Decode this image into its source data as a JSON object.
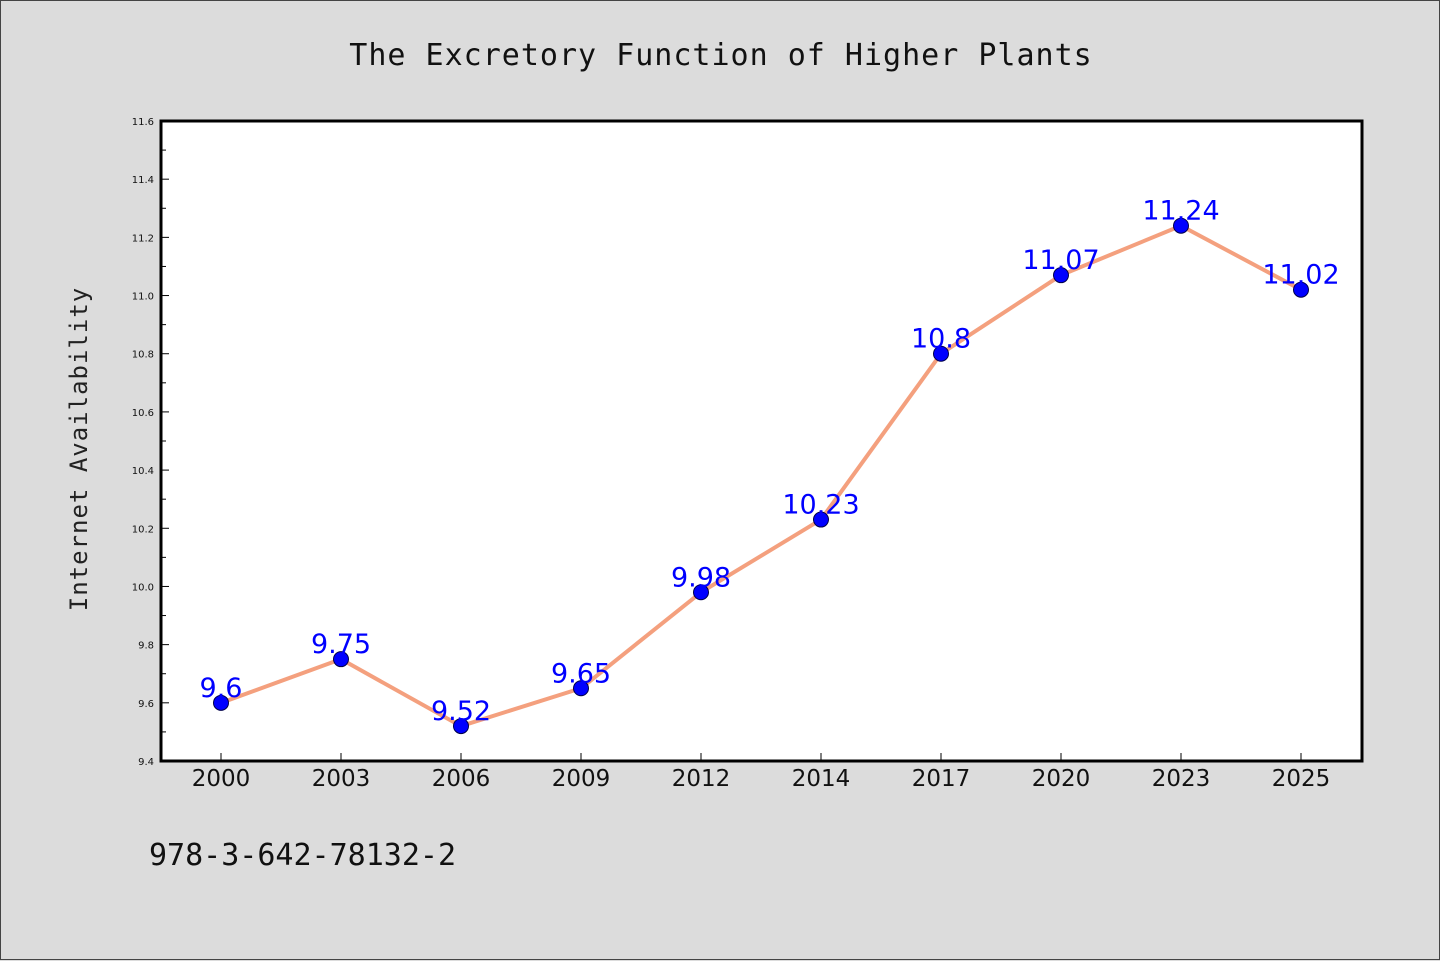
{
  "chart_data": {
    "type": "line",
    "title": "The Excretory Function of Higher Plants",
    "xlabel": "",
    "ylabel": "Internet Availability",
    "categories": [
      "2000",
      "2003",
      "2006",
      "2009",
      "2012",
      "2014",
      "2017",
      "2020",
      "2023",
      "2025"
    ],
    "values": [
      9.6,
      9.75,
      9.52,
      9.65,
      9.98,
      10.23,
      10.8,
      11.07,
      11.24,
      11.02
    ],
    "data_labels": [
      "9.6",
      "9.75",
      "9.52",
      "9.65",
      "9.98",
      "10.23",
      "10.8",
      "11.07",
      "11.24",
      "11.02"
    ],
    "ylim": [
      9.4,
      11.6
    ],
    "yticks": [
      "9.4",
      "9.6",
      "9.8",
      "10.0",
      "10.2",
      "10.4",
      "10.6",
      "10.8",
      "11.0",
      "11.2",
      "11.4",
      "11.6"
    ],
    "grid": false,
    "legend": "none",
    "line_color": "#f4a07e",
    "marker_color": "#0000ff",
    "label_color": "#0000ff",
    "plot_background": "#ffffff",
    "figure_background": "#dcdcdc"
  },
  "footer": {
    "isbn": "978-3-642-78132-2"
  }
}
